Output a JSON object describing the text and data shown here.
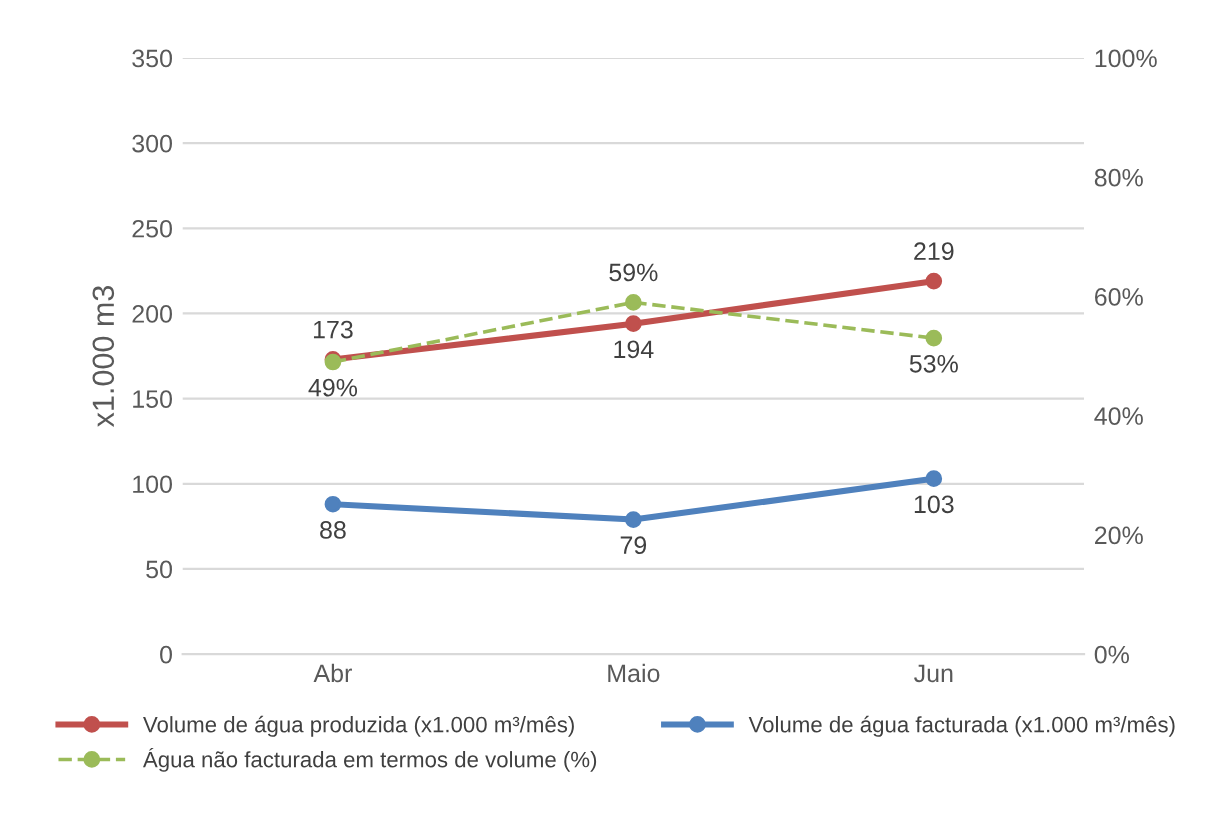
{
  "chart_data": {
    "type": "line",
    "ylabel": "x1.000 m3",
    "categories": [
      "Abr",
      "Maio",
      "Jun"
    ],
    "series": [
      {
        "name": "Volume de água produzida (x1.000 m³/mês)",
        "color": "#c0504d",
        "values": [
          173,
          194,
          219
        ],
        "value_labels": [
          "173",
          "194",
          "219"
        ]
      },
      {
        "name": "Volume de água facturada (x1.000 m³/mês)",
        "color": "#4f81bd",
        "values": [
          88,
          79,
          103
        ],
        "value_labels": [
          "88",
          "79",
          "103"
        ]
      },
      {
        "name": "Água não facturada em termos de volume (%)",
        "color": "#9bbb59",
        "values": [
          49,
          59,
          53
        ],
        "value_labels": [
          "49%",
          "59%",
          "53%"
        ],
        "axis": "y2",
        "line_style": "dashed"
      }
    ],
    "ylim": [
      0,
      350
    ],
    "yticks": [
      0,
      50,
      100,
      150,
      200,
      250,
      300,
      350
    ],
    "y2lim": [
      0,
      100
    ],
    "y2ticks": [
      {
        "value": 0,
        "label": "0%"
      },
      {
        "value": 20,
        "label": "20%"
      },
      {
        "value": 40,
        "label": "40%"
      },
      {
        "value": 60,
        "label": "60%"
      },
      {
        "value": 80,
        "label": "80%"
      },
      {
        "value": 100,
        "label": "100%"
      }
    ],
    "grid": "y",
    "legend": "bottom",
    "marker": "circle"
  }
}
